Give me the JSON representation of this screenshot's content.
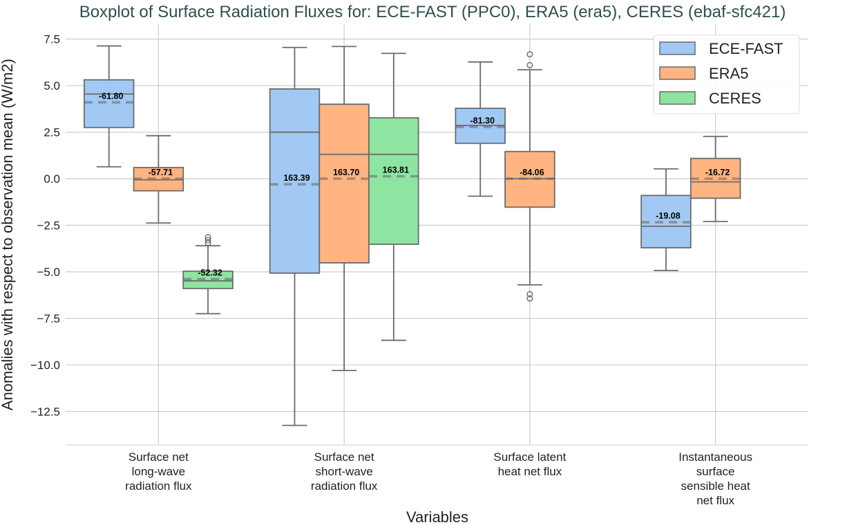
{
  "chart_data": {
    "type": "boxplot",
    "title": "Boxplot of Surface Radiation Fluxes for: ECE-FAST (PPC0), ERA5 (era5), CERES (ebaf-sfc421)",
    "xlabel": "Variables",
    "ylabel": "Anomalies with respect to observation mean (W/m2)",
    "ylim": [
      -14.3,
      8.3
    ],
    "yticks": [
      7.5,
      5.0,
      2.5,
      0.0,
      -2.5,
      -5.0,
      -7.5,
      -10.0,
      -12.5
    ],
    "ytick_labels": [
      "7.5",
      "5.0",
      "2.5",
      "0.0",
      "−2.5",
      "−5.0",
      "−7.5",
      "−10.0",
      "−12.5"
    ],
    "grid": true,
    "legend_position": "top-right",
    "categories": [
      [
        "Surface net",
        "long-wave",
        "radiation flux"
      ],
      [
        "Surface net",
        "short-wave",
        "radiation flux"
      ],
      [
        "Surface latent",
        "heat net flux"
      ],
      [
        "Instantaneous",
        "surface",
        "sensible heat",
        "net flux"
      ]
    ],
    "series": [
      {
        "name": "ECE-FAST",
        "color": "#a1c9f4",
        "boxes": [
          {
            "whislo": 0.64,
            "q1": 2.75,
            "med": 4.55,
            "q3": 5.31,
            "whishi": 7.13,
            "mean": 4.1,
            "label": "-61.80",
            "fliers": []
          },
          {
            "whislo": -13.25,
            "q1": -5.07,
            "med": 2.5,
            "q3": 4.82,
            "whishi": 7.05,
            "mean": -0.3,
            "label": "163.39",
            "fliers": []
          },
          {
            "whislo": -0.94,
            "q1": 1.9,
            "med": 2.86,
            "q3": 3.78,
            "whishi": 6.27,
            "mean": 2.78,
            "label": "-81.30",
            "fliers": []
          },
          {
            "whislo": -4.93,
            "q1": -3.71,
            "med": -2.56,
            "q3": -0.9,
            "whishi": 0.53,
            "mean": -2.34,
            "label": "-19.08",
            "fliers": []
          }
        ]
      },
      {
        "name": "ERA5",
        "color": "#ffb482",
        "boxes": [
          {
            "whislo": -2.38,
            "q1": -0.65,
            "med": -0.06,
            "q3": 0.6,
            "whishi": 2.31,
            "mean": 0.0,
            "label": "-57.71",
            "fliers": []
          },
          {
            "whislo": -10.3,
            "q1": -4.52,
            "med": 1.31,
            "q3": 4.0,
            "whishi": 7.1,
            "mean": 0.0,
            "label": "163.70",
            "fliers": []
          },
          {
            "whislo": -5.7,
            "q1": -1.53,
            "med": 0.0,
            "q3": 1.46,
            "whishi": 5.85,
            "mean": 0.0,
            "label": "-84.06",
            "fliers": [
              6.68,
              6.1,
              -6.2,
              -6.43
            ]
          },
          {
            "whislo": -2.3,
            "q1": -1.05,
            "med": -0.17,
            "q3": 1.09,
            "whishi": 2.27,
            "mean": 0.0,
            "label": "-16.72",
            "fliers": []
          }
        ]
      },
      {
        "name": "CERES",
        "color": "#8de5a1",
        "boxes": [
          {
            "whislo": -7.25,
            "q1": -5.9,
            "med": -5.49,
            "q3": -4.97,
            "whishi": -3.6,
            "mean": -5.39,
            "label": "-52.32",
            "fliers": [
              -3.15,
              -3.3,
              -3.45
            ]
          },
          {
            "whislo": -8.68,
            "q1": -3.52,
            "med": 1.31,
            "q3": 3.27,
            "whishi": 6.73,
            "mean": 0.13,
            "label": "163.81",
            "fliers": []
          },
          null,
          null
        ]
      }
    ]
  }
}
